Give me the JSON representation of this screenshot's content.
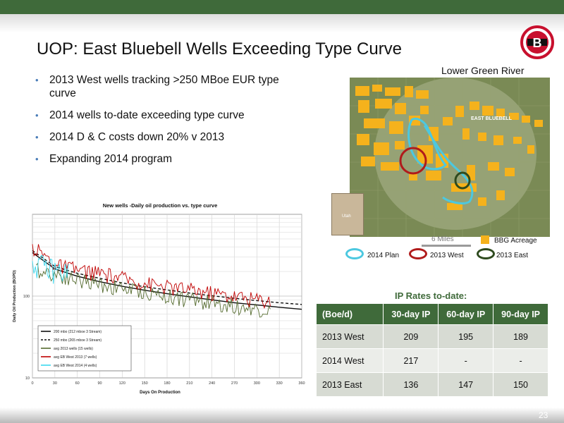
{
  "header": {
    "title": "UOP: East Bluebell Wells Exceeding Type Curve",
    "logo_letter": "B"
  },
  "bullets": [
    "2013 West wells tracking >250 MBoe EUR type curve",
    "2014 wells to-date exceeding type curve",
    "2014 D & C costs down 20% v 2013",
    "Expanding 2014 program"
  ],
  "map": {
    "title": "Lower Green River",
    "area_label": "EAST BLUEBELL",
    "inset_label": "Utah",
    "scale_label": "6 Miles",
    "legend": {
      "acreage": "BBG Acreage",
      "plan2014": "2014 Plan",
      "west2013": "2013 West",
      "east2013": "2013 East"
    },
    "colors": {
      "acreage": "#f5b21c",
      "plan2014": "#4cc8e0",
      "west2013": "#b01b1b",
      "east2013": "#2e4a1e"
    }
  },
  "chart_data": {
    "type": "line",
    "title": "New wells -Daily oil production vs. type curve",
    "xlabel": "Days On Production",
    "ylabel": "Daily Oil Production (BOPD)",
    "xlim": [
      0,
      360
    ],
    "ylim": [
      10,
      1000
    ],
    "yscale": "log",
    "xticks": [
      0,
      30,
      60,
      90,
      120,
      150,
      180,
      210,
      240,
      270,
      300,
      330,
      360
    ],
    "yticks": [
      10,
      100
    ],
    "series": [
      {
        "name": "200 mbo (212 mboe 3 Stream)",
        "color": "#111111",
        "style": "solid",
        "x": [
          0,
          30,
          60,
          90,
          120,
          150,
          180,
          210,
          240,
          270,
          300,
          330,
          360
        ],
        "y": [
          340,
          215,
          175,
          150,
          132,
          118,
          107,
          98,
          90,
          83,
          78,
          73,
          69
        ]
      },
      {
        "name": "250 mbo (265 mboe 3 Stream)",
        "color": "#111111",
        "style": "dashed",
        "x": [
          0,
          30,
          60,
          90,
          120,
          150,
          180,
          210,
          240,
          270,
          300,
          330,
          360
        ],
        "y": [
          360,
          230,
          190,
          165,
          145,
          130,
          119,
          109,
          101,
          94,
          88,
          83,
          79
        ]
      },
      {
        "name": "avg 2013 wells (15 wells)",
        "color": "#556b2f",
        "style": "solid",
        "x": [
          5,
          30,
          60,
          90,
          120,
          150,
          180,
          210,
          240,
          270,
          300,
          320
        ],
        "y": [
          210,
          190,
          160,
          140,
          125,
          112,
          100,
          92,
          84,
          76,
          70,
          66
        ]
      },
      {
        "name": "avg EB West 2013 (7 wells)",
        "color": "#c00000",
        "style": "solid",
        "x": [
          0,
          30,
          60,
          90,
          120,
          150,
          180,
          210,
          240,
          270,
          300,
          320
        ],
        "y": [
          400,
          240,
          210,
          190,
          165,
          145,
          130,
          120,
          110,
          100,
          92,
          88
        ]
      },
      {
        "name": "avg EB West 2014 (4 wells)",
        "color": "#3cd8ee",
        "style": "solid",
        "x": [
          0,
          10,
          20,
          30,
          40,
          50
        ],
        "y": [
          260,
          240,
          220,
          210,
          200,
          195
        ]
      }
    ]
  },
  "ip_table": {
    "title": "IP Rates to-date:",
    "headers": [
      "(Boe/d)",
      "30-day IP",
      "60-day IP",
      "90-day IP"
    ],
    "rows": [
      [
        "2013 West",
        "209",
        "195",
        "189"
      ],
      [
        "2014 West",
        "217",
        "-",
        "-"
      ],
      [
        "2013 East",
        "136",
        "147",
        "150"
      ]
    ]
  },
  "footer": {
    "page_number": "23"
  }
}
